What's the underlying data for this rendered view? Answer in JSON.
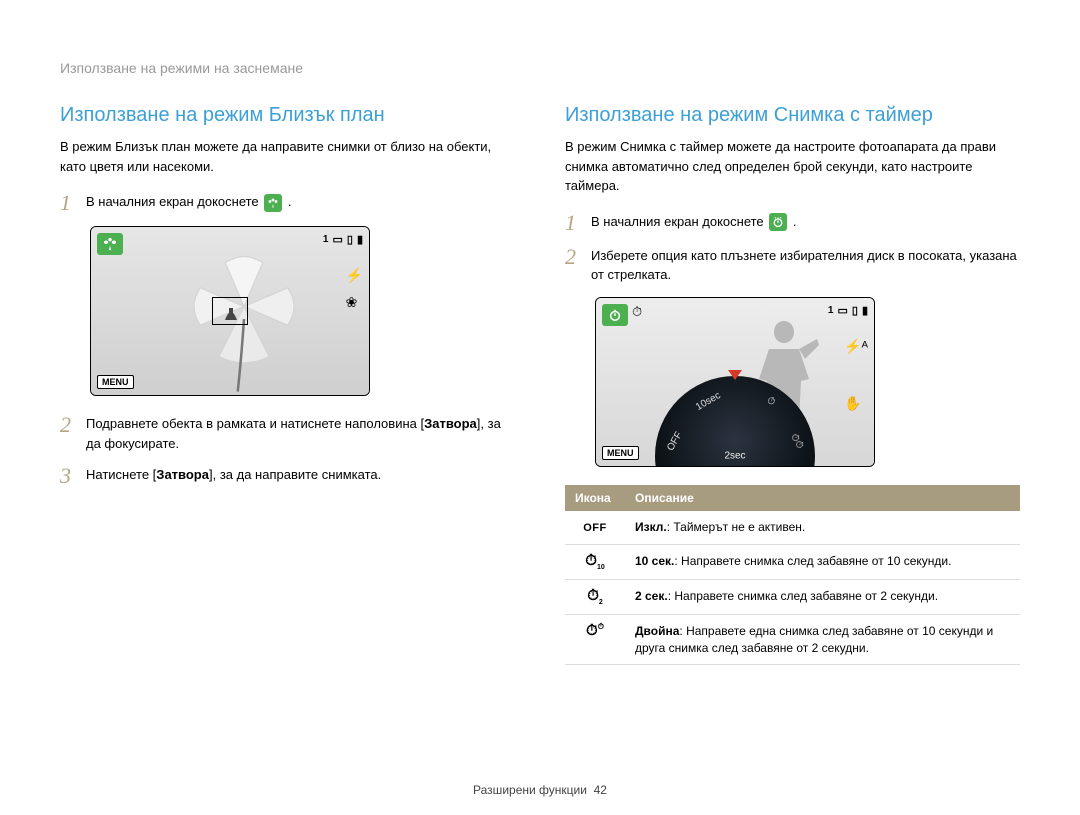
{
  "breadcrumb": "Използване на режими на заснемане",
  "left": {
    "title": "Използване на режим Близък план",
    "intro": "В режим Близък план можете да направите снимки от близо на обекти, като цветя или насекоми.",
    "steps": [
      {
        "num": "1",
        "pre": "В началния екран докоснете",
        "icon": "flower",
        "post": "."
      },
      {
        "num": "2",
        "html": "Подравнете обекта в рамката и натиснете наполовина [<b>Затвора</b>], за да фокусирате."
      },
      {
        "num": "3",
        "html": "Натиснете [<b>Затвора</b>], за да направите снимката."
      }
    ],
    "shot": {
      "mode_icon": "flower",
      "top_right_count": "1",
      "menu": "MENU"
    }
  },
  "right": {
    "title": "Използване на режим Снимка с таймер",
    "intro": "В режим Снимка с таймер можете да настроите фотоапарата да прави снимка автоматично след определен брой секунди, като настроите таймера.",
    "steps": [
      {
        "num": "1",
        "pre": "В началния екран докоснете",
        "icon": "timer",
        "post": "."
      },
      {
        "num": "2",
        "text": "Изберете опция като плъзнете избирателния диск в посоката, указана от стрелката."
      }
    ],
    "shot": {
      "mode_icon": "timer",
      "top_right_count": "1",
      "menu": "MENU",
      "dial_center": "2sec",
      "dial_labels": [
        "OFF",
        "10sec",
        "2sec",
        "Double"
      ]
    },
    "table": {
      "headers": [
        "Икона",
        "Описание"
      ],
      "rows": [
        {
          "icon_type": "off",
          "icon_text": "OFF",
          "desc": "<b>Изкл.</b>: Таймерът не е активен."
        },
        {
          "icon_type": "t10",
          "desc": "<b>10 сек.</b>: Направете снимка след забавяне от 10 секунди."
        },
        {
          "icon_type": "t2",
          "desc": "<b>2 сек.</b>: Направете снимка след забавяне от 2 секунди."
        },
        {
          "icon_type": "double",
          "desc": "<b>Двойна</b>: Направете една снимка след забавяне от 10 секунди и друга снимка след забавяне от 2 секудни."
        }
      ]
    }
  },
  "footer": {
    "label": "Разширени функции",
    "page": "42"
  },
  "colors": {
    "heading": "#3ca0d6",
    "step_num": "#b5a584",
    "table_header_bg": "#a79c80",
    "icon_green": "#4caf50"
  }
}
